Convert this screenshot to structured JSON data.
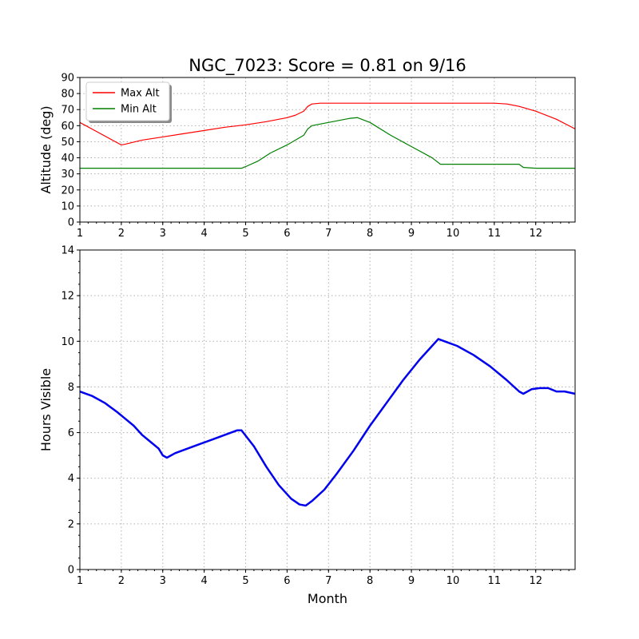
{
  "figure": {
    "title": "NGC_7023: Score = 0.81 on 9/16"
  },
  "chart_data": [
    {
      "type": "line",
      "title": "NGC_7023: Score = 0.81 on 9/16",
      "xlabel": "",
      "ylabel": "Altitude (deg)",
      "xlim": [
        1,
        12.95
      ],
      "ylim": [
        0,
        90
      ],
      "xticks": [
        1,
        2,
        3,
        4,
        5,
        6,
        7,
        8,
        9,
        10,
        11,
        12
      ],
      "yticks": [
        0,
        10,
        20,
        30,
        40,
        50,
        60,
        70,
        80,
        90
      ],
      "grid": true,
      "legend": "top-left",
      "series": [
        {
          "name": "Max Alt",
          "color": "#ff0000",
          "x": [
            1.0,
            1.5,
            2.0,
            2.1,
            2.5,
            3.0,
            3.5,
            4.0,
            4.5,
            5.0,
            5.5,
            6.0,
            6.2,
            6.4,
            6.5,
            6.6,
            6.8,
            7.0,
            8.0,
            9.0,
            10.0,
            11.0,
            11.3,
            11.6,
            12.0,
            12.5,
            12.95
          ],
          "y": [
            62,
            55,
            48,
            48.5,
            51,
            53,
            55,
            57,
            59,
            60.5,
            62.5,
            65,
            66.5,
            69,
            72,
            73.5,
            74,
            74,
            74,
            74,
            74,
            74,
            73.5,
            72,
            69,
            64,
            58
          ]
        },
        {
          "name": "Min Alt",
          "color": "#008000",
          "x": [
            1.0,
            2.0,
            3.0,
            4.0,
            4.8,
            4.9,
            5.0,
            5.3,
            5.6,
            6.0,
            6.4,
            6.5,
            6.6,
            7.0,
            7.5,
            7.7,
            8.0,
            8.5,
            9.0,
            9.5,
            9.7,
            10.0,
            10.5,
            11.0,
            11.6,
            11.7,
            12.0,
            12.95
          ],
          "y": [
            33.5,
            33.5,
            33.5,
            33.5,
            33.5,
            33.5,
            34.5,
            38,
            43,
            48,
            54,
            58,
            60,
            62,
            64.5,
            65,
            62,
            54,
            47,
            40,
            36,
            36,
            36,
            36,
            36,
            34,
            33.5,
            33.5
          ]
        }
      ]
    },
    {
      "type": "line",
      "title": "",
      "xlabel": "Month",
      "ylabel": "Hours Visible",
      "xlim": [
        1,
        12.95
      ],
      "ylim": [
        0,
        14
      ],
      "xticks": [
        1,
        2,
        3,
        4,
        5,
        6,
        7,
        8,
        9,
        10,
        11,
        12
      ],
      "yticks": [
        0,
        2,
        4,
        6,
        8,
        10,
        12,
        14
      ],
      "grid": true,
      "series": [
        {
          "color": "#0000ee",
          "x": [
            1.0,
            1.3,
            1.6,
            1.9,
            2.1,
            2.3,
            2.5,
            2.7,
            2.9,
            3.0,
            3.1,
            3.3,
            3.6,
            3.9,
            4.2,
            4.5,
            4.8,
            4.9,
            5.2,
            5.5,
            5.8,
            6.1,
            6.3,
            6.45,
            6.6,
            6.9,
            7.2,
            7.6,
            8.0,
            8.4,
            8.8,
            9.2,
            9.5,
            9.65,
            9.8,
            10.1,
            10.5,
            10.9,
            11.3,
            11.6,
            11.7,
            11.9,
            12.1,
            12.3,
            12.5,
            12.7,
            12.95
          ],
          "y": [
            7.8,
            7.6,
            7.3,
            6.9,
            6.6,
            6.3,
            5.9,
            5.6,
            5.3,
            5.0,
            4.9,
            5.1,
            5.3,
            5.5,
            5.7,
            5.9,
            6.1,
            6.1,
            5.4,
            4.5,
            3.7,
            3.1,
            2.85,
            2.8,
            3.0,
            3.5,
            4.2,
            5.2,
            6.3,
            7.3,
            8.3,
            9.2,
            9.8,
            10.1,
            10.0,
            9.8,
            9.4,
            8.9,
            8.3,
            7.8,
            7.7,
            7.9,
            7.95,
            7.95,
            7.8,
            7.8,
            7.7
          ]
        }
      ]
    }
  ]
}
